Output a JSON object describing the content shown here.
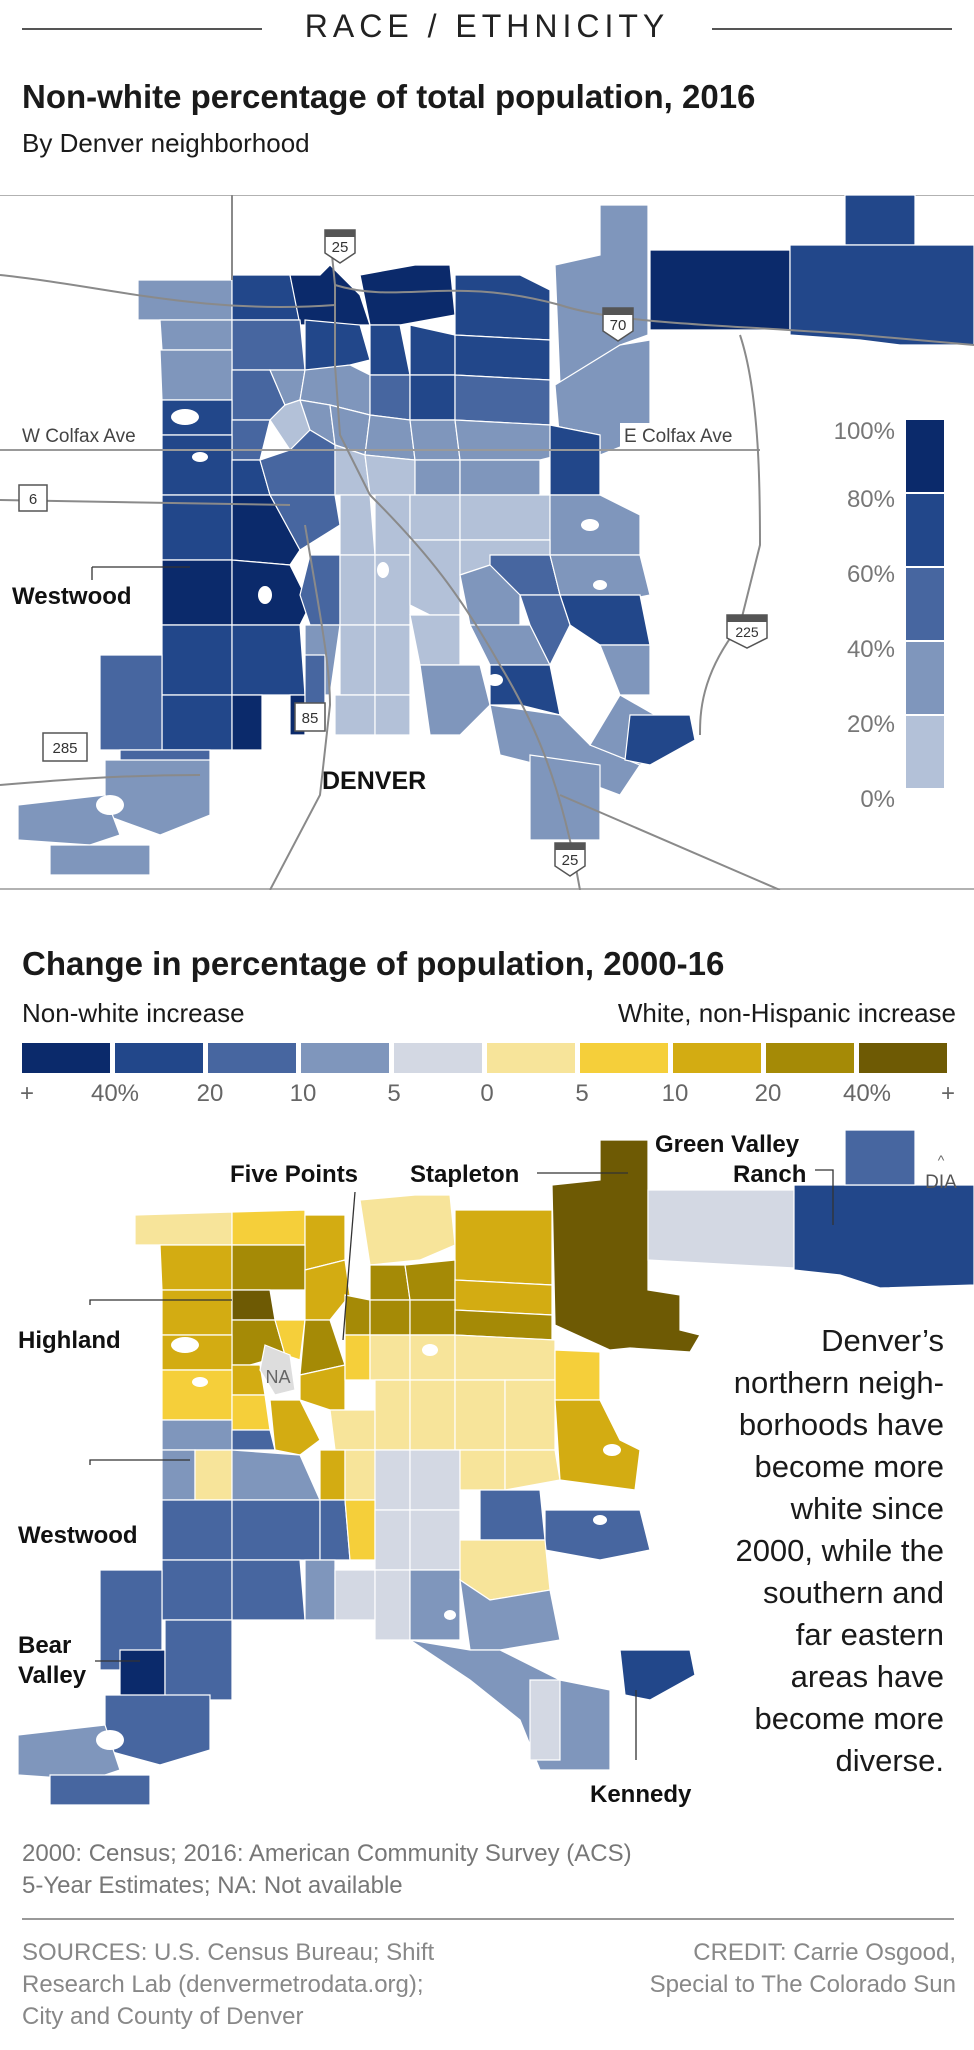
{
  "kicker": "RACE / ETHNICITY",
  "map1": {
    "title": "Non-white percentage of total population, 2016",
    "subtitle": "By Denver neighborhood",
    "roads": {
      "w_colfax": "W Colfax Ave",
      "e_colfax": "E Colfax Ave"
    },
    "shields": {
      "i25_top": "25",
      "i70": "70",
      "us6": "6",
      "i225": "225",
      "us85": "85",
      "us285": "285",
      "i25_bottom": "25"
    },
    "labels": {
      "westwood": "Westwood",
      "denver": "DENVER"
    },
    "legend": [
      "100%",
      "80%",
      "60%",
      "40%",
      "20%",
      "0%"
    ],
    "legend_colors": [
      "#0b2a6b",
      "#22478a",
      "#4766a0",
      "#7f96bc",
      "#b3c1d8"
    ]
  },
  "map2": {
    "title": "Change in percentage of population, 2000-16",
    "left_label": "Non-white increase",
    "right_label": "White, non-Hispanic increase",
    "scale_colors": [
      "#0b2a6b",
      "#22478a",
      "#4766a0",
      "#7f96bc",
      "#d3d8e3",
      "#f7e49a",
      "#f5cf3a",
      "#d3ac12",
      "#a58a06",
      "#6e5a04"
    ],
    "scale_labels": [
      "+",
      "40%",
      "20",
      "10",
      "5",
      "0",
      "5",
      "10",
      "20",
      "40%",
      "+"
    ],
    "labels": {
      "five_points": "Five Points",
      "stapleton": "Stapleton",
      "gvr1": "Green Valley",
      "gvr2": "Ranch",
      "dia": "DIA",
      "highland": "Highland",
      "na": "NA",
      "westwood": "Westwood",
      "bear1": "Bear",
      "bear2": "Valley",
      "kennedy": "Kennedy"
    },
    "annotation": [
      "Denver’s",
      "northern neigh-",
      "borhoods have",
      "become more",
      "white since",
      "2000, while the",
      "southern and",
      "far eastern",
      "areas have",
      "become more",
      "diverse."
    ]
  },
  "note": [
    "2000: Census; 2016: American Community Survey (ACS)",
    "5-Year Estimates; NA: Not available"
  ],
  "sources": [
    "SOURCES: U.S. Census Bureau; Shift",
    "Research Lab (denvermetrodata.org);",
    "City and County of Denver"
  ],
  "credit": [
    "CREDIT: Carrie Osgood,",
    "Special to The Colorado Sun"
  ]
}
